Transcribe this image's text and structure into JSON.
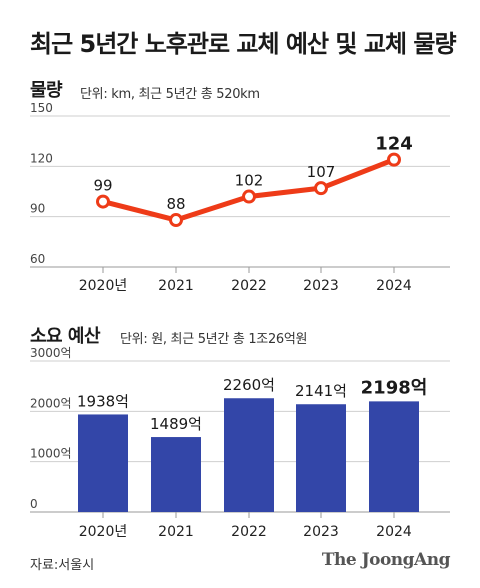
{
  "title": "최근 5년간 노후관로 교체 예산 및 교체 물량",
  "source": "자료:서울시",
  "brand": "The JoongAng",
  "colors": {
    "line": "#ee3b18",
    "bar": "#3346a8",
    "grid": "#cfcfcf"
  },
  "chart_data": [
    {
      "type": "line",
      "title": "물량",
      "unit_note": "단위: km, 최근 5년간 총 520km",
      "categories": [
        "2020년",
        "2021",
        "2022",
        "2023",
        "2024"
      ],
      "values": [
        99,
        88,
        102,
        107,
        124
      ],
      "value_labels": [
        "99",
        "88",
        "102",
        "107",
        "124"
      ],
      "yticks": [
        "150",
        "120",
        "90",
        "60"
      ],
      "ylim": [
        60,
        150
      ],
      "grid": true
    },
    {
      "type": "bar",
      "title": "소요 예산",
      "unit_note": "단위: 원, 최근 5년간 총 1조26억원",
      "categories": [
        "2020년",
        "2021",
        "2022",
        "2023",
        "2024"
      ],
      "values": [
        1938,
        1489,
        2260,
        2141,
        2198
      ],
      "value_labels": [
        "1938억",
        "1489억",
        "2260억",
        "2141억",
        "2198억"
      ],
      "yticks": [
        "3000억",
        "2000억",
        "1000억",
        "0"
      ],
      "ylim": [
        0,
        3000
      ],
      "grid": true
    }
  ]
}
